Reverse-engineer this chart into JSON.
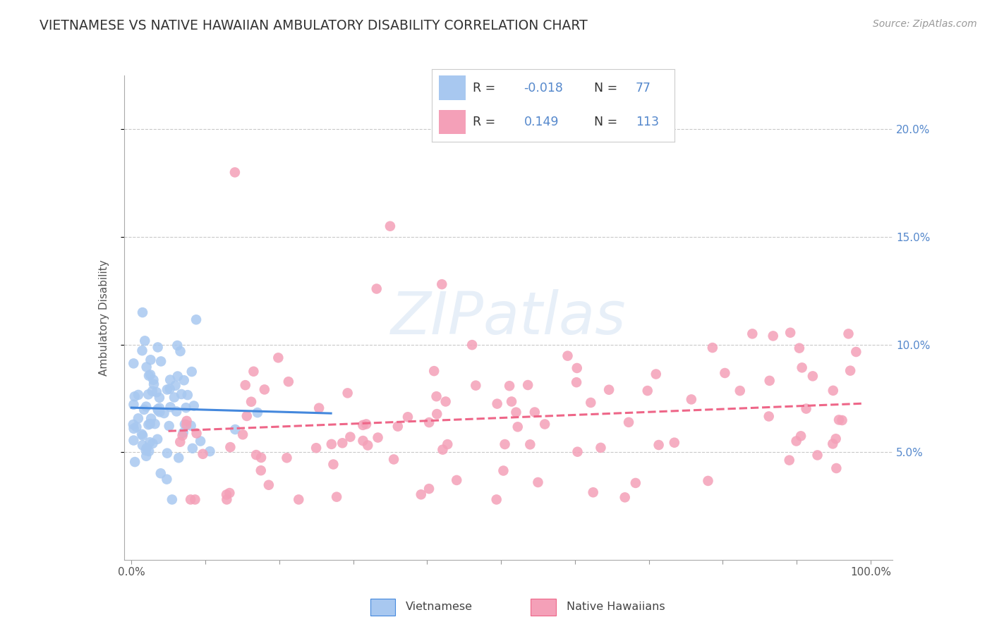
{
  "title": "VIETNAMESE VS NATIVE HAWAIIAN AMBULATORY DISABILITY CORRELATION CHART",
  "source": "Source: ZipAtlas.com",
  "ylabel": "Ambulatory Disability",
  "color_vietnamese": "#A8C8F0",
  "color_native_hawaiian": "#F4A0B8",
  "color_line_vietnamese": "#4488DD",
  "color_line_native_hawaiian": "#EE6688",
  "color_tick_labels": "#5588CC",
  "watermark_text": "ZIPatlas",
  "legend_entries": [
    {
      "r": "-0.018",
      "n": "77"
    },
    {
      "r": "0.149",
      "n": "113"
    }
  ],
  "bottom_labels": [
    "Vietnamese",
    "Native Hawaiians"
  ]
}
